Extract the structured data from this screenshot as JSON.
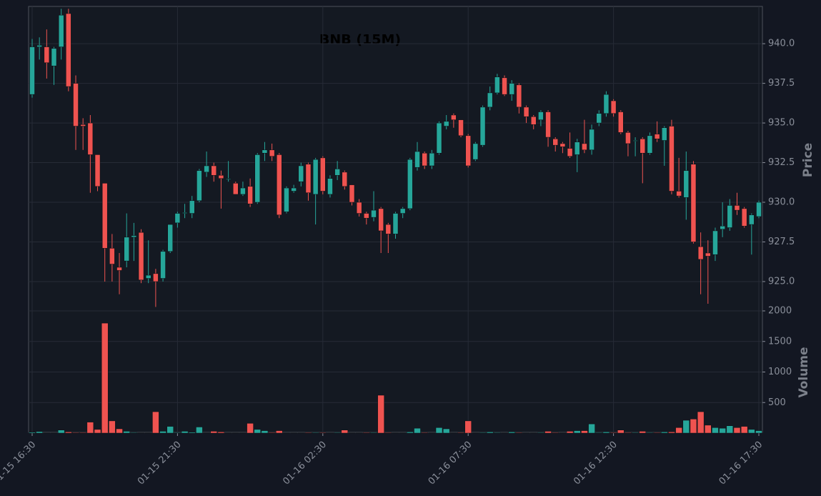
{
  "chart_data": [
    {
      "type": "candlestick",
      "title": "BNB (15M)",
      "ylabel": "Price",
      "up_color": "#26a69a",
      "down_color": "#ef5350",
      "x": [
        "01-15 16:30",
        "01-15 16:45",
        "01-15 17:00",
        "01-15 17:15",
        "01-15 17:30",
        "01-15 17:45",
        "01-15 18:00",
        "01-15 18:15",
        "01-15 18:30",
        "01-15 18:45",
        "01-15 19:00",
        "01-15 19:15",
        "01-15 19:30",
        "01-15 19:45",
        "01-15 20:00",
        "01-15 20:15",
        "01-15 20:30",
        "01-15 20:45",
        "01-15 21:00",
        "01-15 21:15",
        "01-15 21:30",
        "01-15 21:45",
        "01-15 22:00",
        "01-15 22:15",
        "01-15 22:30",
        "01-15 22:45",
        "01-15 23:00",
        "01-15 23:15",
        "01-15 23:30",
        "01-15 23:45",
        "01-16 00:00",
        "01-16 00:15",
        "01-16 00:30",
        "01-16 00:45",
        "01-16 01:00",
        "01-16 01:15",
        "01-16 01:30",
        "01-16 01:45",
        "01-16 02:00",
        "01-16 02:15",
        "01-16 02:30",
        "01-16 02:45",
        "01-16 03:00",
        "01-16 03:15",
        "01-16 03:30",
        "01-16 03:45",
        "01-16 04:00",
        "01-16 04:15",
        "01-16 04:30",
        "01-16 04:45",
        "01-16 05:00",
        "01-16 05:15",
        "01-16 05:30",
        "01-16 05:45",
        "01-16 06:00",
        "01-16 06:15",
        "01-16 06:30",
        "01-16 06:45",
        "01-16 07:00",
        "01-16 07:15",
        "01-16 07:30",
        "01-16 07:45",
        "01-16 08:00",
        "01-16 08:15",
        "01-16 08:30",
        "01-16 08:45",
        "01-16 09:00",
        "01-16 09:15",
        "01-16 09:30",
        "01-16 09:45",
        "01-16 10:00",
        "01-16 10:15",
        "01-16 10:30",
        "01-16 10:45",
        "01-16 11:00",
        "01-16 11:15",
        "01-16 11:30",
        "01-16 11:45",
        "01-16 12:00",
        "01-16 12:15",
        "01-16 12:30",
        "01-16 12:45",
        "01-16 13:00",
        "01-16 13:15",
        "01-16 13:30",
        "01-16 13:45",
        "01-16 14:00",
        "01-16 14:15",
        "01-16 14:30",
        "01-16 14:45",
        "01-16 15:00",
        "01-16 15:15",
        "01-16 15:30",
        "01-16 15:45",
        "01-16 16:00",
        "01-16 16:15",
        "01-16 16:30",
        "01-16 16:45",
        "01-16 17:00",
        "01-16 17:15",
        "01-16 17:30"
      ],
      "open": [
        936.8,
        939.8,
        939.8,
        938.6,
        939.8,
        941.9,
        937.5,
        934.9,
        935.0,
        933.0,
        931.2,
        927.1,
        925.9,
        926.3,
        927.8,
        928.1,
        925.2,
        925.5,
        925.2,
        926.9,
        928.7,
        929.3,
        929.3,
        930.1,
        931.9,
        932.3,
        931.7,
        931.5,
        931.2,
        930.5,
        931.0,
        930.0,
        933.1,
        933.3,
        933.0,
        929.4,
        930.7,
        931.3,
        932.4,
        930.5,
        932.8,
        930.5,
        931.7,
        931.9,
        931.1,
        930.0,
        929.3,
        929.05,
        929.6,
        928.6,
        928.0,
        929.3,
        929.6,
        932.2,
        933.1,
        932.3,
        933.1,
        934.8,
        935.5,
        935.2,
        934.2,
        932.7,
        933.6,
        936.0,
        936.9,
        937.85,
        936.8,
        937.4,
        936.0,
        935.4,
        935.2,
        935.7,
        934.0,
        933.7,
        933.4,
        933.0,
        933.7,
        933.3,
        935.0,
        935.6,
        936.4,
        935.7,
        934.4,
        933.9,
        934.0,
        933.1,
        934.3,
        933.9,
        934.8,
        930.7,
        930.3,
        932.4,
        927.2,
        926.8,
        926.7,
        928.3,
        928.4,
        929.8,
        929.6,
        928.6,
        929.1
      ],
      "high": [
        940.3,
        940.4,
        940.9,
        939.8,
        942.2,
        942.2,
        938.0,
        935.3,
        935.5,
        933.0,
        931.2,
        928.0,
        926.8,
        929.3,
        928.7,
        928.3,
        927.6,
        925.8,
        927.0,
        928.6,
        929.4,
        929.9,
        930.4,
        932.1,
        933.2,
        932.5,
        932.0,
        932.6,
        931.3,
        931.3,
        931.5,
        933.1,
        933.8,
        933.7,
        933.1,
        931.0,
        931.1,
        932.5,
        932.5,
        932.8,
        932.9,
        931.7,
        932.6,
        932.0,
        931.1,
        930.2,
        929.4,
        930.7,
        929.7,
        928.7,
        929.4,
        929.7,
        932.8,
        933.8,
        933.2,
        933.3,
        935.1,
        935.5,
        935.6,
        935.2,
        934.3,
        933.8,
        936.1,
        937.3,
        938.1,
        938.0,
        937.7,
        937.5,
        936.1,
        935.5,
        935.8,
        935.8,
        934.1,
        933.8,
        934.4,
        934.0,
        935.2,
        934.9,
        935.8,
        937.0,
        936.5,
        935.8,
        934.5,
        934.1,
        934.1,
        934.4,
        935.1,
        934.8,
        935.2,
        932.8,
        933.2,
        932.6,
        928.1,
        927.6,
        928.4,
        930.0,
        930.2,
        930.6,
        929.7,
        929.3,
        930.1
      ],
      "low": [
        936.6,
        939.0,
        937.8,
        937.4,
        939.0,
        937.0,
        933.3,
        933.3,
        930.6,
        930.7,
        925.0,
        925.0,
        924.2,
        925.9,
        926.3,
        924.9,
        924.9,
        923.4,
        925.0,
        926.8,
        928.4,
        929.0,
        929.0,
        930.0,
        931.6,
        931.3,
        929.6,
        931.3,
        930.5,
        930.4,
        929.7,
        929.9,
        932.6,
        932.6,
        929.0,
        929.3,
        930.6,
        931.0,
        930.1,
        928.6,
        930.5,
        930.3,
        931.4,
        930.8,
        929.8,
        929.1,
        928.6,
        928.8,
        926.8,
        926.8,
        927.7,
        929.0,
        929.5,
        932.0,
        932.1,
        932.1,
        933.0,
        934.6,
        934.7,
        934.1,
        932.2,
        932.6,
        933.5,
        935.8,
        936.8,
        936.7,
        936.4,
        935.6,
        935.0,
        934.6,
        934.8,
        933.5,
        933.2,
        933.1,
        932.8,
        931.9,
        933.1,
        933.0,
        934.8,
        935.4,
        935.4,
        934.3,
        932.9,
        932.9,
        931.2,
        933.0,
        933.8,
        932.3,
        930.5,
        930.3,
        928.9,
        927.4,
        924.2,
        923.6,
        926.3,
        927.8,
        928.2,
        929.2,
        928.4,
        926.7,
        929.0
      ],
      "close": [
        939.8,
        939.9,
        938.8,
        939.7,
        941.8,
        937.3,
        934.8,
        934.8,
        933.0,
        931.0,
        927.1,
        926.1,
        925.7,
        927.8,
        927.9,
        925.1,
        925.4,
        925.0,
        926.9,
        928.6,
        929.3,
        929.35,
        930.1,
        932.0,
        932.3,
        931.7,
        931.5,
        931.5,
        930.5,
        930.9,
        929.9,
        933.0,
        933.3,
        932.9,
        929.2,
        930.9,
        930.9,
        932.3,
        930.6,
        932.7,
        930.7,
        931.5,
        932.1,
        931.0,
        930.0,
        929.3,
        929.0,
        929.5,
        928.2,
        928.0,
        929.3,
        929.6,
        932.7,
        933.2,
        932.3,
        933.1,
        935.0,
        935.1,
        935.2,
        934.2,
        932.3,
        933.7,
        936.0,
        936.9,
        937.9,
        936.8,
        937.5,
        936.0,
        935.4,
        934.9,
        935.7,
        934.1,
        933.6,
        933.5,
        932.9,
        933.8,
        933.3,
        934.6,
        935.6,
        936.8,
        935.6,
        934.4,
        933.7,
        933.9,
        933.1,
        934.2,
        934.0,
        934.7,
        930.7,
        930.4,
        932.0,
        927.5,
        926.4,
        926.6,
        928.2,
        928.5,
        929.8,
        929.5,
        928.5,
        929.2,
        930.0
      ],
      "ylim": [
        923.15,
        942.35
      ],
      "yticks": [
        {
          "value": 925,
          "label": "925.0"
        },
        {
          "value": 927.5,
          "label": "927.5"
        },
        {
          "value": 930,
          "label": "930.0"
        },
        {
          "value": 932.5,
          "label": "932.5"
        },
        {
          "value": 935,
          "label": "935.0"
        },
        {
          "value": 937.5,
          "label": "937.5"
        },
        {
          "value": 940,
          "label": "940.0"
        }
      ],
      "grid": true
    },
    {
      "type": "bar",
      "ylabel": "Volume",
      "values": [
        15,
        25,
        5,
        5,
        50,
        20,
        10,
        10,
        180,
        60,
        1800,
        200,
        70,
        30,
        10,
        5,
        5,
        350,
        30,
        110,
        10,
        30,
        15,
        100,
        5,
        30,
        20,
        5,
        5,
        5,
        160,
        60,
        40,
        10,
        40,
        5,
        5,
        5,
        10,
        10,
        10,
        5,
        10,
        50,
        5,
        5,
        10,
        10,
        620,
        10,
        5,
        5,
        20,
        80,
        10,
        5,
        90,
        70,
        5,
        10,
        200,
        5,
        10,
        20,
        10,
        5,
        20,
        10,
        5,
        5,
        10,
        30,
        10,
        5,
        30,
        40,
        40,
        150,
        10,
        20,
        10,
        50,
        10,
        10,
        30,
        10,
        10,
        20,
        20,
        90,
        210,
        230,
        350,
        130,
        90,
        80,
        120,
        90,
        110,
        60,
        40
      ],
      "ylim": [
        0,
        2000
      ],
      "yticks": [
        500,
        1000,
        1500,
        2000
      ],
      "xticks": [
        "01-15 16:30",
        "01-15 21:30",
        "01-16 02:30",
        "01-16 07:30",
        "01-16 12:30",
        "01-16 17:30"
      ],
      "grid": true
    }
  ]
}
